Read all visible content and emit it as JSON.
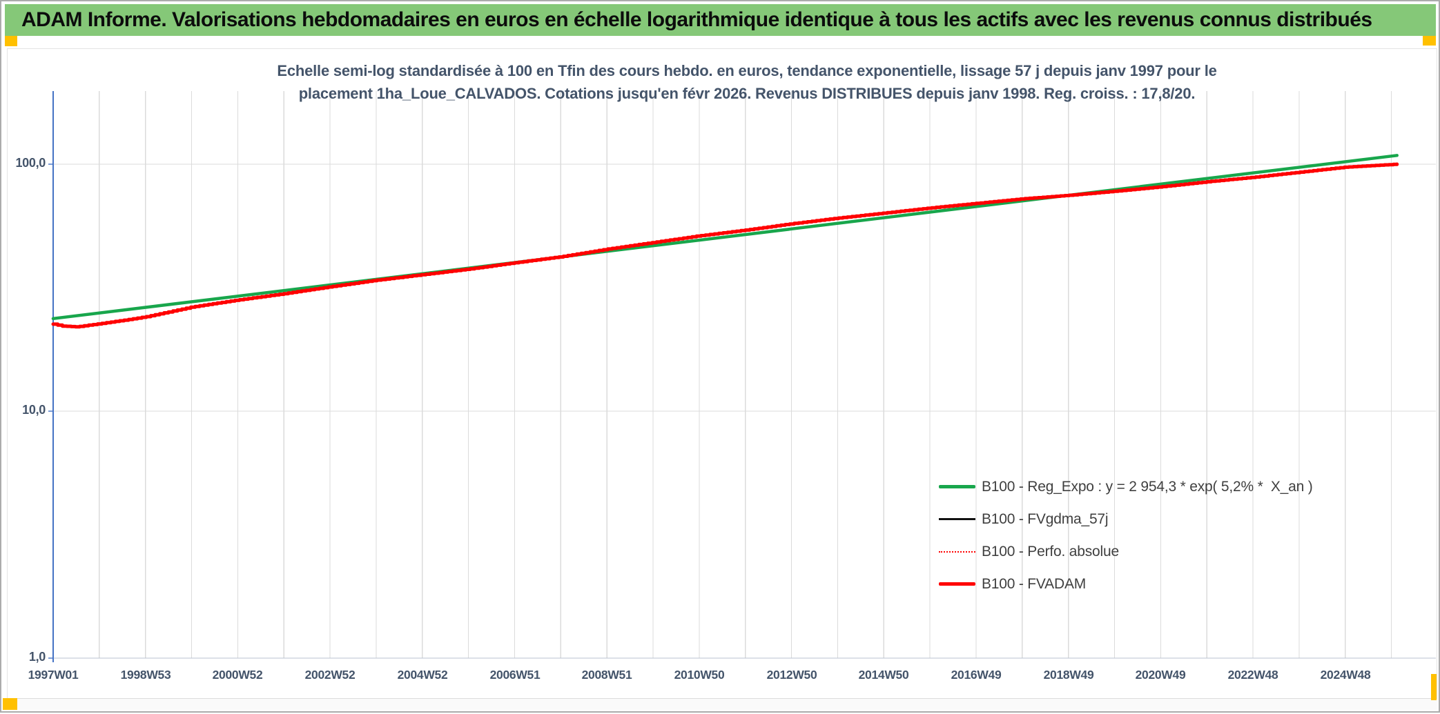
{
  "window": {
    "header_text": "ADAM Informe. Valorisations hebdomadaires en euros en échelle logarithmique identique à tous les actifs avec les revenus connus distribués"
  },
  "colors": {
    "header_bg": "#85C878",
    "marker_orange": "#FFC000",
    "text_navy": "#44546A",
    "grid": "#DBDBDB",
    "axis_blue": "#4472C4",
    "baseline_gray": "#B9C2D0",
    "legend_text": "#3F3F3F",
    "series_green": "#18A64C",
    "series_red": "#FF0000",
    "series_black": "#111111"
  },
  "chart_data": {
    "type": "line",
    "title_line1": "Echelle semi-log standardisée à 100 en Tfin des cours hebdo. en euros, tendance exponentielle, lissage 57 j depuis janv 1997 pour le",
    "title_line2": "placement 1ha_Loue_CALVADOS. Cotations jusqu'en févr 2026. Revenus DISTRIBUES depuis janv 1998. Reg. croiss. : 17,8/20.",
    "legend_position": "inside-right-bottom",
    "grid": true,
    "x_axis": {
      "start_year": 1997,
      "end_year": 2026.12,
      "gridline_interval_years": 1,
      "tick_labels": [
        "1997W01",
        "1998W53",
        "2000W52",
        "2002W52",
        "2004W52",
        "2006W51",
        "2008W51",
        "2010W50",
        "2012W50",
        "2014W50",
        "2016W49",
        "2018W49",
        "2020W49",
        "2022W48",
        "2024W48"
      ],
      "tick_label_years": [
        1997,
        1999,
        2001,
        2003,
        2005,
        2007,
        2009,
        2011,
        2013,
        2015,
        2017,
        2019,
        2021,
        2023,
        2025
      ]
    },
    "y_axis": {
      "scale": "log",
      "tick_labels": [
        "100,0",
        "10,0",
        "1,0"
      ],
      "tick_values": [
        100,
        10,
        1
      ],
      "gridline_values": [
        100,
        10
      ],
      "range": [
        1,
        200
      ]
    },
    "points_shared": {
      "b100_weekly_trend": [
        [
          1997.0,
          22.5
        ],
        [
          1997.2,
          22.1
        ],
        [
          1997.5,
          21.95
        ],
        [
          1998.0,
          22.6
        ],
        [
          1998.5,
          23.3
        ],
        [
          1999.0,
          24.1
        ],
        [
          2000.0,
          26.4
        ],
        [
          2001.0,
          28.2
        ],
        [
          2002.0,
          29.9
        ],
        [
          2003.0,
          31.9
        ],
        [
          2004.0,
          33.9
        ],
        [
          2005.0,
          35.7
        ],
        [
          2006.0,
          37.6
        ],
        [
          2007.0,
          39.9
        ],
        [
          2008.0,
          42.2
        ],
        [
          2009.0,
          45.3
        ],
        [
          2010.0,
          48.2
        ],
        [
          2011.0,
          51.3
        ],
        [
          2012.0,
          54.1
        ],
        [
          2013.0,
          57.4
        ],
        [
          2014.0,
          60.5
        ],
        [
          2015.0,
          63.4
        ],
        [
          2016.0,
          66.5
        ],
        [
          2017.0,
          69.4
        ],
        [
          2018.0,
          72.4
        ],
        [
          2019.0,
          74.8
        ],
        [
          2020.0,
          77.7
        ],
        [
          2021.0,
          81.0
        ],
        [
          2022.0,
          84.9
        ],
        [
          2023.0,
          88.5
        ],
        [
          2024.0,
          92.8
        ],
        [
          2025.0,
          97.3
        ],
        [
          2026.12,
          100.0
        ]
      ]
    },
    "series": [
      {
        "id": "reg_expo",
        "name": "B100 - Reg_Expo : y = 2 954,3 * exp( 5,2% *  X_an )",
        "color": "#18A64C",
        "width": 4.5,
        "style": "solid",
        "render": "line",
        "points": [
          [
            1997.0,
            23.7
          ],
          [
            2026.12,
            108.5
          ]
        ]
      },
      {
        "id": "fvgdma_57j",
        "name": "B100 - FVgdma_57j",
        "color": "#111111",
        "width": 2.2,
        "style": "solid",
        "render": "smooth",
        "points_ref": "b100_weekly_trend"
      },
      {
        "id": "perfo_absolue",
        "name": "B100 - Perfo. absolue",
        "color": "#FF0000",
        "width": 1.8,
        "style": "dotted",
        "render": "smooth",
        "points_ref": "b100_weekly_trend"
      },
      {
        "id": "fvadam",
        "name": "B100 - FVADAM",
        "color": "#FF0000",
        "width": 5,
        "style": "solid",
        "render": "steps",
        "points_ref": "b100_weekly_trend"
      }
    ]
  }
}
